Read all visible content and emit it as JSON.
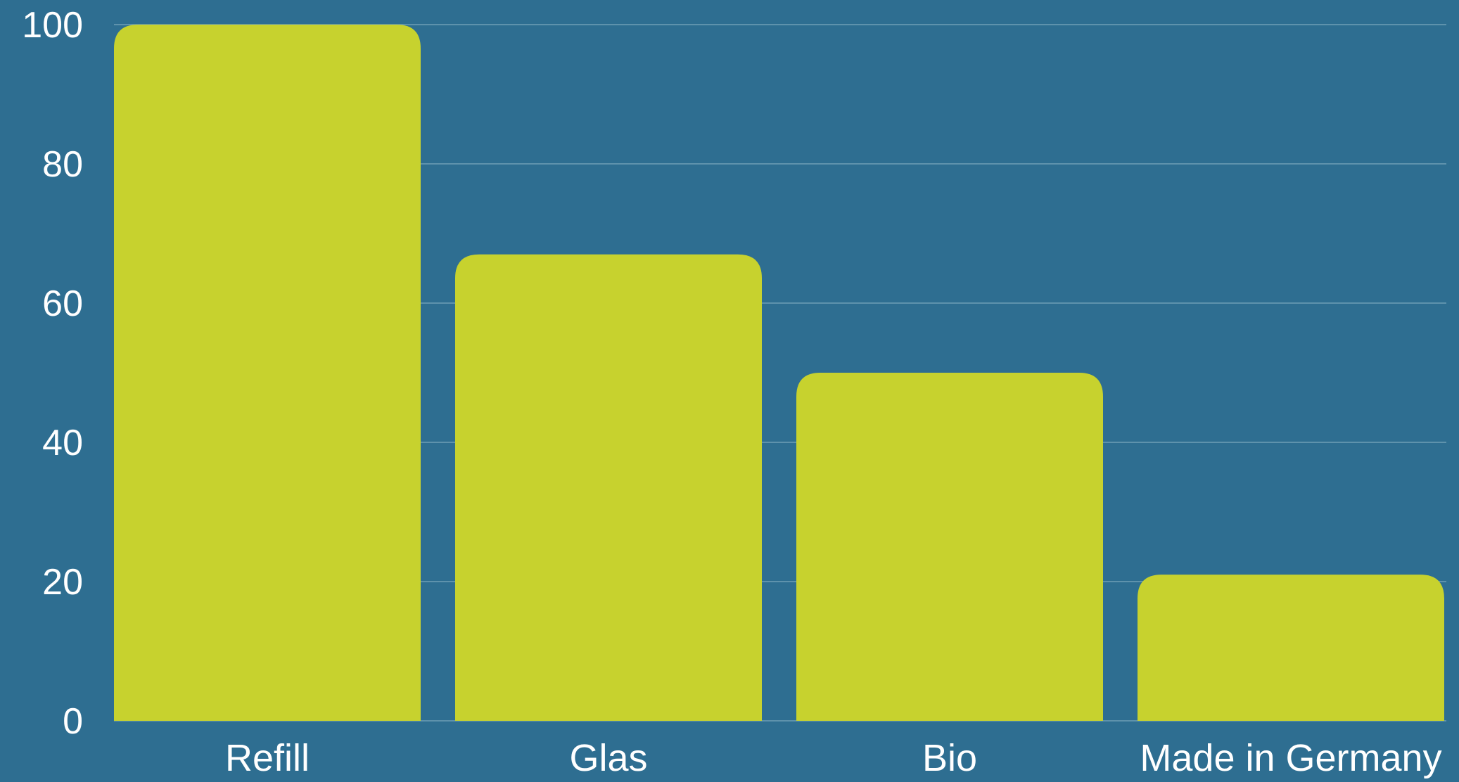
{
  "chart_data": {
    "type": "bar",
    "categories": [
      "Refill",
      "Glas",
      "Bio",
      "Made in Germany"
    ],
    "values": [
      100,
      67,
      50,
      21
    ],
    "y_ticks": [
      "0",
      "20",
      "40",
      "60",
      "80",
      "100"
    ],
    "ylim": [
      0,
      100
    ],
    "grid": true,
    "title": "",
    "xlabel": "",
    "ylabel": "",
    "colors": {
      "background": "#2e6e91",
      "bar": "#c7d22e",
      "grid": "#6f9db6",
      "text": "#ffffff"
    }
  }
}
